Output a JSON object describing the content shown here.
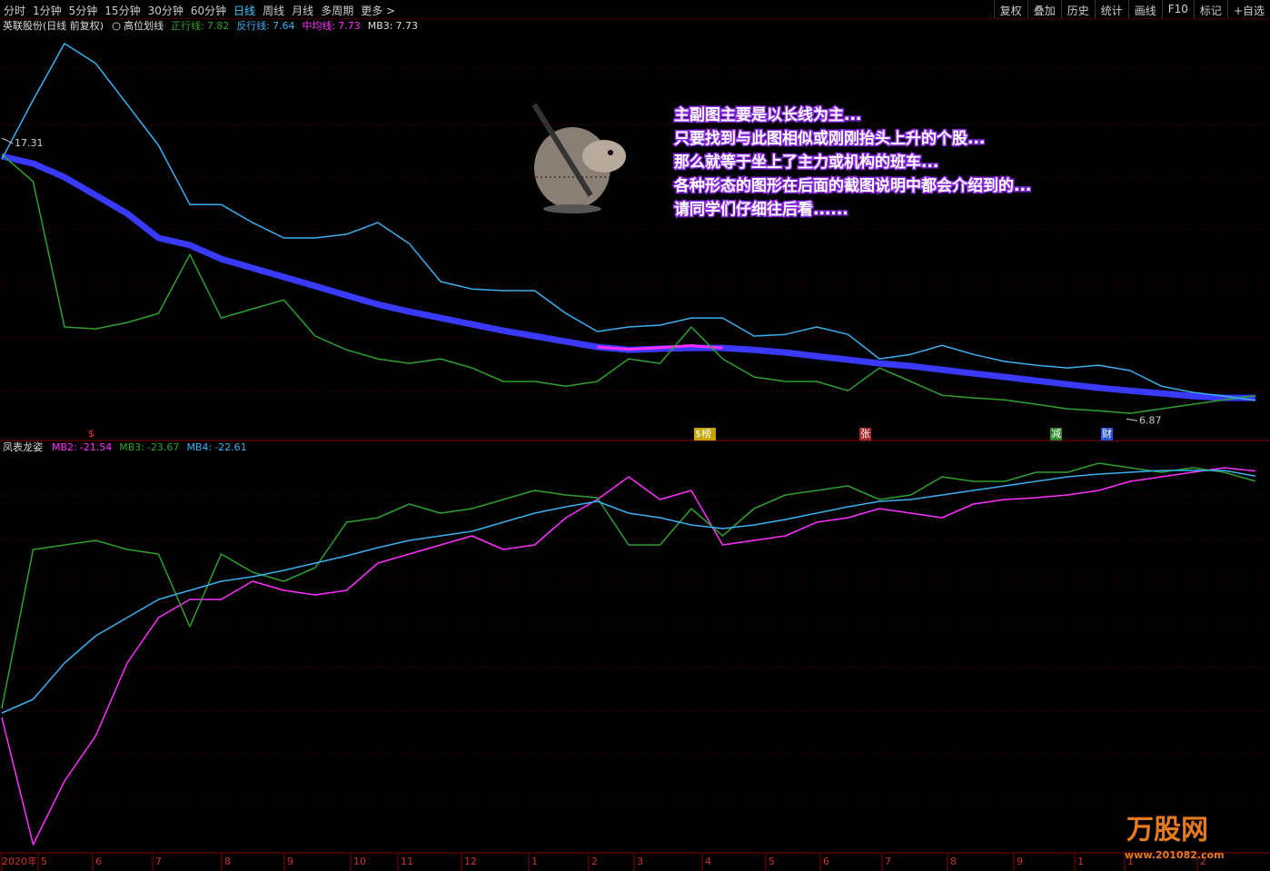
{
  "toolbar": {
    "periods": [
      "分时",
      "1分钟",
      "5分钟",
      "15分钟",
      "30分钟",
      "60分钟",
      "日线",
      "周线",
      "月线",
      "多周期",
      "更多 >"
    ],
    "selected": "日线",
    "tools": [
      "复权",
      "叠加",
      "历史",
      "统计",
      "画线",
      "F10",
      "标记",
      "+自选"
    ]
  },
  "note": [
    "主副图主要是以长线为主...",
    "只要找到与此图相似或刚刚抬头上升的个股...",
    "那么就等于坐上了主力或机构的班车...",
    "各种形态的图形在后面的截图说明中都会介绍到的...",
    "请同学们仔细往后看......"
  ],
  "markers": [
    {
      "label": "$",
      "color": "#ff3030"
    },
    {
      "label": "$榜",
      "color": "#e8c000"
    },
    {
      "label": "张",
      "color": "#c03030"
    },
    {
      "label": "减",
      "color": "#30a030"
    },
    {
      "label": "财",
      "color": "#3060ff"
    }
  ],
  "x_axis_labels": [
    "2020年",
    "5",
    "6",
    "7",
    "8",
    "9",
    "10",
    "11",
    "12",
    "1",
    "2",
    "3",
    "4",
    "5",
    "6",
    "7",
    "8",
    "9",
    "1",
    "1",
    "2"
  ],
  "watermark": {
    "title": "万股网",
    "url": "www.201082.com"
  },
  "chart_data": [
    {
      "type": "line",
      "title": "英联股份(日线 前复权)",
      "indicator": "高位划线",
      "ylim": [
        6.64,
        21.41
      ],
      "high": 17.31,
      "low": 6.87,
      "categories": [
        null,
        null,
        null,
        null,
        null,
        null,
        null,
        null,
        null,
        null,
        null,
        null,
        null,
        null,
        null,
        null,
        null,
        null,
        null,
        null,
        null,
        null,
        null,
        null,
        null,
        null,
        null,
        null,
        null,
        null,
        null,
        null,
        null,
        null,
        null,
        null,
        null,
        null,
        null,
        null,
        null
      ],
      "series": [
        {
          "name": "正行线:",
          "color": "#2ea02e",
          "width": 1.5,
          "values": [
            16.9,
            15.87,
            10.4,
            10.33,
            10.57,
            10.91,
            13.13,
            10.74,
            11.08,
            11.42,
            10.06,
            9.54,
            9.2,
            9.03,
            9.2,
            8.86,
            8.35,
            8.35,
            8.17,
            8.35,
            9.2,
            9.03,
            10.4,
            9.2,
            8.52,
            8.35,
            8.35,
            8.0,
            8.86,
            8.35,
            7.83,
            7.73,
            7.66,
            7.49,
            7.32,
            7.25,
            7.15,
            7.32,
            7.49,
            7.66,
            7.82
          ]
        },
        {
          "name": "反行线:",
          "color": "#3ab0f0",
          "width": 1.5,
          "values": [
            16.72,
            18.95,
            21.07,
            20.32,
            18.78,
            17.24,
            15.01,
            15.01,
            14.33,
            13.75,
            13.75,
            13.89,
            14.33,
            13.54,
            12.11,
            11.83,
            11.77,
            11.77,
            10.91,
            10.23,
            10.4,
            10.47,
            10.74,
            10.74,
            10.06,
            10.12,
            10.4,
            10.12,
            9.2,
            9.37,
            9.71,
            9.37,
            9.1,
            8.96,
            8.86,
            8.96,
            8.76,
            8.17,
            7.94,
            7.8,
            7.64
          ]
        },
        {
          "name": "中均线:",
          "color": "#ff30ff",
          "width": 3,
          "values": [
            null,
            null,
            null,
            null,
            null,
            null,
            null,
            null,
            null,
            null,
            null,
            null,
            null,
            null,
            null,
            null,
            null,
            null,
            null,
            9.65,
            9.56,
            9.62,
            9.7,
            9.61,
            null,
            null,
            null,
            null,
            null,
            null,
            null,
            null,
            null,
            null,
            null,
            null,
            null,
            null,
            null,
            null,
            7.73
          ]
        },
        {
          "name": "MB3:",
          "color": "#3a3aff",
          "width": 7,
          "values": [
            16.83,
            16.55,
            16.04,
            15.36,
            14.67,
            13.75,
            13.48,
            12.96,
            12.62,
            12.28,
            11.94,
            11.59,
            11.25,
            10.98,
            10.74,
            10.5,
            10.26,
            10.06,
            9.85,
            9.65,
            9.54,
            9.58,
            9.61,
            9.61,
            9.54,
            9.44,
            9.3,
            9.17,
            9.03,
            8.93,
            8.79,
            8.65,
            8.52,
            8.38,
            8.24,
            8.11,
            8.0,
            7.9,
            7.8,
            7.73,
            7.73
          ]
        }
      ]
    },
    {
      "type": "line",
      "title": "凤表龙姿",
      "ylim": [
        -101.03,
        -18
      ],
      "categories": [
        null,
        null,
        null,
        null,
        null,
        null,
        null,
        null,
        null,
        null,
        null,
        null,
        null,
        null,
        null,
        null,
        null,
        null,
        null,
        null,
        null,
        null,
        null,
        null,
        null,
        null,
        null,
        null,
        null,
        null,
        null,
        null,
        null,
        null,
        null,
        null,
        null,
        null,
        null,
        null,
        null
      ],
      "series": [
        {
          "name": "MB2:",
          "color": "#ff30ff",
          "width": 1.5,
          "values": [
            -73.1,
            -99.7,
            -86.4,
            -76.9,
            -61.7,
            -52.2,
            -48.4,
            -48.4,
            -44.6,
            -46.5,
            -47.45,
            -46.5,
            -40.8,
            -38.9,
            -37,
            -35.1,
            -37.95,
            -37,
            -31.3,
            -27.5,
            -22.75,
            -27.5,
            -25.6,
            -37,
            -36.05,
            -35.1,
            -32.25,
            -31.3,
            -29.4,
            -30.35,
            -31.3,
            -28.45,
            -27.5,
            -27.12,
            -26.55,
            -25.6,
            -23.7,
            -22.75,
            -21.8,
            -20.85,
            -21.54
          ]
        },
        {
          "name": "MB3:",
          "color": "#2ea02e",
          "width": 1.5,
          "values": [
            -71.2,
            -37.95,
            -37,
            -36.05,
            -37.95,
            -38.9,
            -54.1,
            -38.9,
            -42.7,
            -44.6,
            -41.75,
            -32.25,
            -31.3,
            -28.45,
            -30.35,
            -29.4,
            -27.5,
            -25.6,
            -26.55,
            -27.12,
            -37,
            -37,
            -29.4,
            -35.1,
            -29.4,
            -26.55,
            -25.6,
            -24.65,
            -27.5,
            -26.55,
            -22.75,
            -23.7,
            -23.7,
            -21.8,
            -21.8,
            -19.9,
            -20.85,
            -21.8,
            -20.85,
            -21.8,
            -23.67
          ]
        },
        {
          "name": "MB4:",
          "color": "#3ab0f0",
          "width": 1.5,
          "values": [
            -72.15,
            -69.3,
            -61.7,
            -56,
            -52.2,
            -48.4,
            -46.5,
            -44.6,
            -43.65,
            -42.32,
            -40.8,
            -39.28,
            -37.57,
            -36.05,
            -35.1,
            -34.15,
            -32.25,
            -30.35,
            -29.02,
            -27.88,
            -30.35,
            -31.3,
            -32.82,
            -33.58,
            -32.82,
            -31.68,
            -30.35,
            -29.02,
            -27.88,
            -27.5,
            -26.55,
            -25.6,
            -24.65,
            -23.7,
            -22.75,
            -22.18,
            -21.8,
            -21.42,
            -21.42,
            -21.42,
            -22.61
          ]
        }
      ]
    }
  ]
}
